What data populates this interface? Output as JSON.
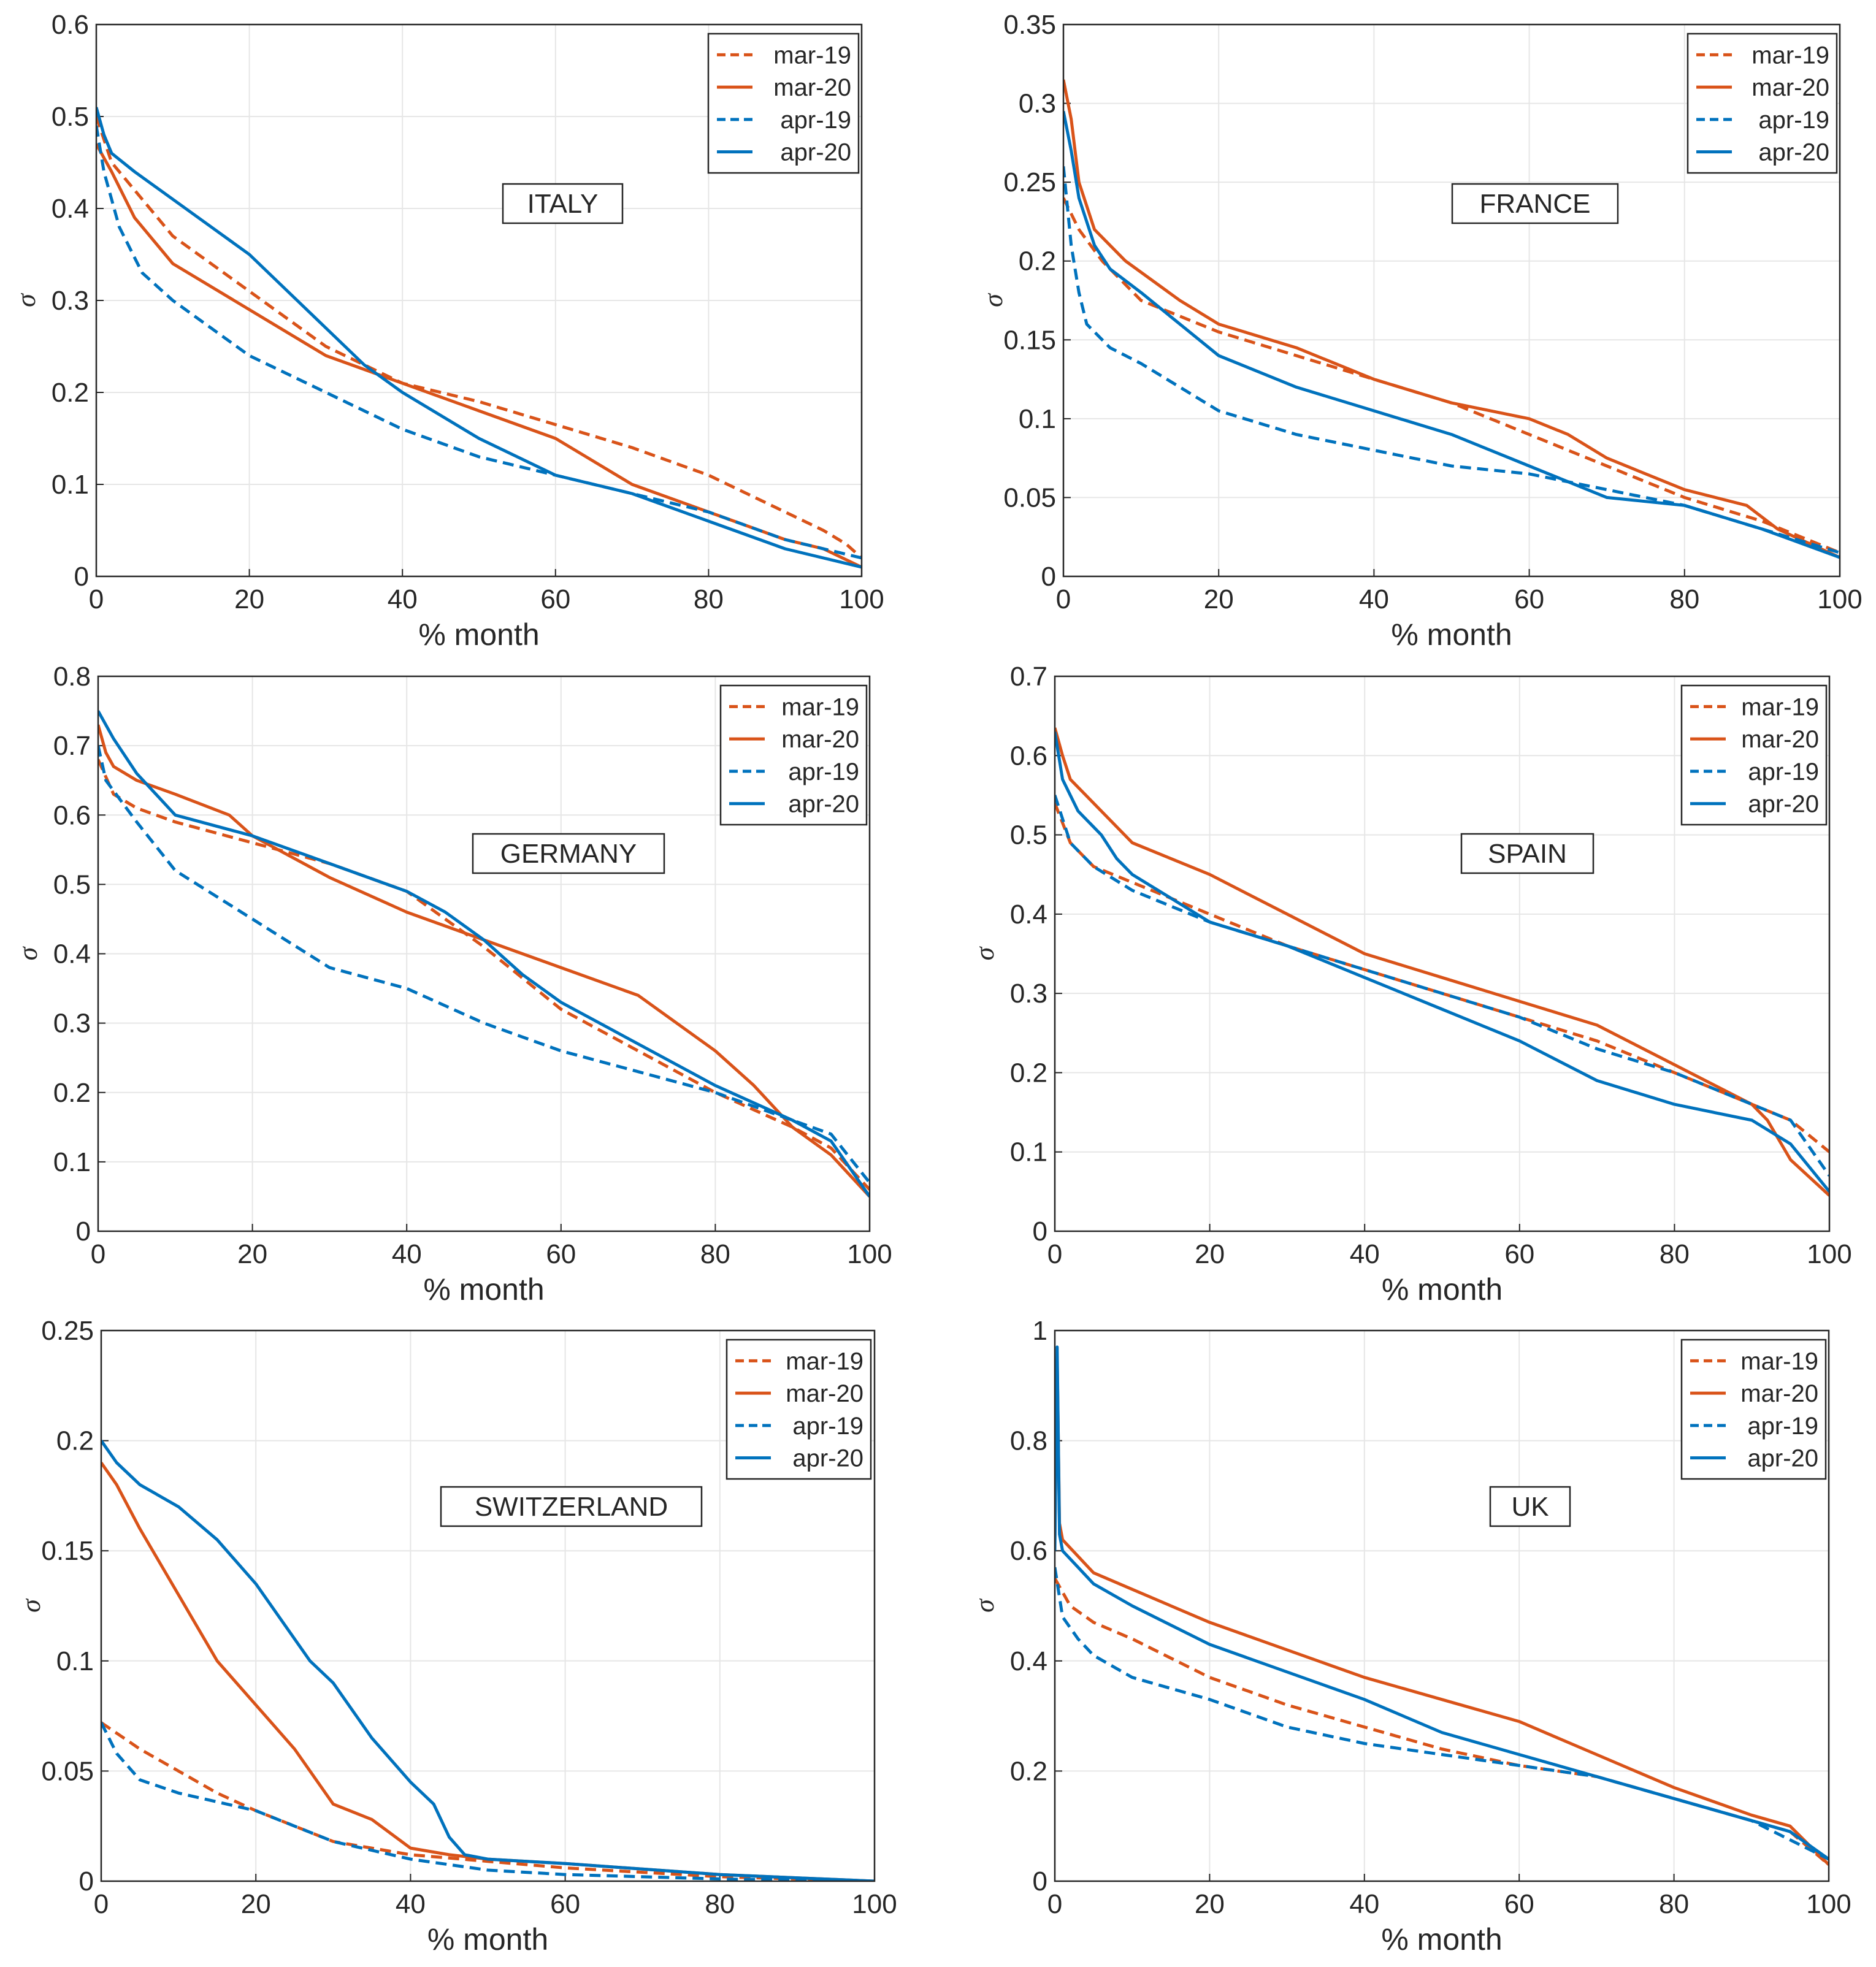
{
  "figure": {
    "xlabel": "% month",
    "ylabel": "σ"
  },
  "legend_labels": [
    "mar-19",
    "mar-20",
    "apr-19",
    "apr-20"
  ],
  "colors": {
    "mar": "#D95319",
    "apr": "#0072BD"
  },
  "chart_data": [
    {
      "type": "line",
      "title": "ITALY",
      "xlabel": "% month",
      "ylabel": "σ",
      "xlim": [
        0,
        100
      ],
      "ylim": [
        0,
        0.6
      ],
      "legend": "top-right",
      "xticks": [
        "0",
        "20",
        "40",
        "60",
        "80",
        "100"
      ],
      "yticks": [
        "0",
        "0.1",
        "0.2",
        "0.3",
        "0.4",
        "0.5",
        "0.6"
      ],
      "series": [
        {
          "name": "mar-19",
          "style": "dashed",
          "color": "#D95319",
          "x": [
            0,
            2,
            5,
            10,
            20,
            30,
            40,
            50,
            60,
            70,
            80,
            90,
            95,
            98,
            100
          ],
          "y": [
            0.5,
            0.45,
            0.42,
            0.37,
            0.31,
            0.25,
            0.21,
            0.19,
            0.165,
            0.14,
            0.11,
            0.07,
            0.05,
            0.035,
            0.02
          ]
        },
        {
          "name": "mar-20",
          "style": "solid",
          "color": "#D95319",
          "x": [
            0,
            2,
            5,
            10,
            20,
            30,
            40,
            50,
            60,
            70,
            80,
            90,
            95,
            100
          ],
          "y": [
            0.47,
            0.44,
            0.39,
            0.34,
            0.29,
            0.24,
            0.21,
            0.18,
            0.15,
            0.1,
            0.07,
            0.04,
            0.03,
            0.01
          ]
        },
        {
          "name": "apr-19",
          "style": "dashed",
          "color": "#0072BD",
          "x": [
            0,
            1,
            3,
            6,
            10,
            15,
            20,
            30,
            40,
            50,
            60,
            70,
            80,
            90,
            100
          ],
          "y": [
            0.49,
            0.44,
            0.38,
            0.33,
            0.3,
            0.27,
            0.24,
            0.2,
            0.16,
            0.13,
            0.11,
            0.09,
            0.07,
            0.04,
            0.02
          ]
        },
        {
          "name": "apr-20",
          "style": "solid",
          "color": "#0072BD",
          "x": [
            0,
            1,
            2,
            5,
            10,
            15,
            20,
            25,
            30,
            35,
            40,
            50,
            60,
            70,
            80,
            90,
            100
          ],
          "y": [
            0.51,
            0.48,
            0.46,
            0.44,
            0.41,
            0.38,
            0.35,
            0.31,
            0.27,
            0.23,
            0.2,
            0.15,
            0.11,
            0.09,
            0.06,
            0.03,
            0.01
          ]
        }
      ]
    },
    {
      "type": "line",
      "title": "FRANCE",
      "xlabel": "% month",
      "ylabel": "σ",
      "xlim": [
        0,
        100
      ],
      "ylim": [
        0,
        0.35
      ],
      "legend": "top-right",
      "xticks": [
        "0",
        "20",
        "40",
        "60",
        "80",
        "100"
      ],
      "yticks": [
        "0",
        "0.05",
        "0.1",
        "0.15",
        "0.2",
        "0.25",
        "0.3",
        "0.35"
      ],
      "series": [
        {
          "name": "mar-19",
          "style": "dashed",
          "color": "#D95319",
          "x": [
            0,
            2,
            5,
            10,
            20,
            30,
            40,
            50,
            60,
            70,
            80,
            90,
            100
          ],
          "y": [
            0.24,
            0.22,
            0.2,
            0.175,
            0.155,
            0.14,
            0.125,
            0.11,
            0.09,
            0.07,
            0.05,
            0.035,
            0.015
          ]
        },
        {
          "name": "mar-20",
          "style": "solid",
          "color": "#D95319",
          "x": [
            0,
            1,
            2,
            4,
            8,
            15,
            20,
            30,
            40,
            50,
            60,
            65,
            70,
            80,
            88,
            92,
            100
          ],
          "y": [
            0.315,
            0.29,
            0.25,
            0.22,
            0.2,
            0.175,
            0.16,
            0.145,
            0.125,
            0.11,
            0.1,
            0.09,
            0.075,
            0.055,
            0.045,
            0.03,
            0.012
          ]
        },
        {
          "name": "apr-19",
          "style": "dashed",
          "color": "#0072BD",
          "x": [
            0,
            1,
            2,
            3,
            6,
            10,
            15,
            20,
            30,
            40,
            50,
            60,
            70,
            80,
            90,
            100
          ],
          "y": [
            0.26,
            0.21,
            0.18,
            0.16,
            0.145,
            0.135,
            0.12,
            0.105,
            0.09,
            0.08,
            0.07,
            0.065,
            0.055,
            0.045,
            0.03,
            0.015
          ]
        },
        {
          "name": "apr-20",
          "style": "solid",
          "color": "#0072BD",
          "x": [
            0,
            1,
            2,
            4,
            6,
            10,
            15,
            20,
            30,
            40,
            50,
            55,
            60,
            65,
            70,
            80,
            90,
            100
          ],
          "y": [
            0.295,
            0.27,
            0.24,
            0.21,
            0.195,
            0.18,
            0.16,
            0.14,
            0.12,
            0.105,
            0.09,
            0.08,
            0.07,
            0.06,
            0.05,
            0.045,
            0.03,
            0.012
          ]
        }
      ]
    },
    {
      "type": "line",
      "title": "GERMANY",
      "xlabel": "% month",
      "ylabel": "σ",
      "xlim": [
        0,
        100
      ],
      "ylim": [
        0,
        0.8
      ],
      "legend": "top-right",
      "xticks": [
        "0",
        "20",
        "40",
        "60",
        "80",
        "100"
      ],
      "yticks": [
        "0",
        "0.1",
        "0.2",
        "0.3",
        "0.4",
        "0.5",
        "0.6",
        "0.7",
        "0.8"
      ],
      "series": [
        {
          "name": "mar-19",
          "style": "dashed",
          "color": "#D95319",
          "x": [
            0,
            2,
            5,
            10,
            20,
            30,
            40,
            50,
            60,
            70,
            80,
            90,
            95,
            100
          ],
          "y": [
            0.68,
            0.63,
            0.61,
            0.59,
            0.56,
            0.53,
            0.49,
            0.41,
            0.32,
            0.26,
            0.2,
            0.15,
            0.12,
            0.06
          ]
        },
        {
          "name": "mar-20",
          "style": "solid",
          "color": "#D95319",
          "x": [
            0,
            1,
            2,
            5,
            10,
            17,
            20,
            30,
            40,
            50,
            60,
            70,
            80,
            85,
            90,
            95,
            100
          ],
          "y": [
            0.73,
            0.69,
            0.67,
            0.65,
            0.63,
            0.6,
            0.57,
            0.51,
            0.46,
            0.42,
            0.38,
            0.34,
            0.26,
            0.21,
            0.15,
            0.11,
            0.05
          ]
        },
        {
          "name": "apr-19",
          "style": "dashed",
          "color": "#0072BD",
          "x": [
            0,
            1,
            3,
            5,
            10,
            20,
            30,
            40,
            50,
            60,
            70,
            80,
            90,
            95,
            100
          ],
          "y": [
            0.7,
            0.65,
            0.62,
            0.59,
            0.52,
            0.45,
            0.38,
            0.35,
            0.3,
            0.26,
            0.23,
            0.2,
            0.16,
            0.14,
            0.07
          ]
        },
        {
          "name": "apr-20",
          "style": "solid",
          "color": "#0072BD",
          "x": [
            0,
            2,
            5,
            10,
            20,
            30,
            40,
            45,
            50,
            55,
            60,
            65,
            70,
            80,
            90,
            95,
            100
          ],
          "y": [
            0.75,
            0.71,
            0.66,
            0.6,
            0.57,
            0.53,
            0.49,
            0.46,
            0.42,
            0.37,
            0.33,
            0.3,
            0.27,
            0.21,
            0.16,
            0.13,
            0.05
          ]
        }
      ]
    },
    {
      "type": "line",
      "title": "SPAIN",
      "xlabel": "% month",
      "ylabel": "σ",
      "xlim": [
        0,
        100
      ],
      "ylim": [
        0,
        0.7
      ],
      "legend": "top-right",
      "xticks": [
        "0",
        "20",
        "40",
        "60",
        "80",
        "100"
      ],
      "yticks": [
        "0",
        "0.1",
        "0.2",
        "0.3",
        "0.4",
        "0.5",
        "0.6",
        "0.7"
      ],
      "series": [
        {
          "name": "mar-19",
          "style": "dashed",
          "color": "#D95319",
          "x": [
            0,
            2,
            5,
            10,
            20,
            30,
            40,
            50,
            60,
            70,
            80,
            90,
            95,
            100
          ],
          "y": [
            0.54,
            0.49,
            0.46,
            0.44,
            0.4,
            0.36,
            0.33,
            0.3,
            0.27,
            0.24,
            0.2,
            0.16,
            0.14,
            0.1
          ]
        },
        {
          "name": "mar-20",
          "style": "solid",
          "color": "#D95319",
          "x": [
            0,
            1,
            2,
            5,
            10,
            20,
            30,
            40,
            50,
            60,
            70,
            80,
            90,
            92,
            95,
            100
          ],
          "y": [
            0.635,
            0.6,
            0.57,
            0.54,
            0.49,
            0.45,
            0.4,
            0.35,
            0.32,
            0.29,
            0.26,
            0.21,
            0.16,
            0.14,
            0.09,
            0.045
          ]
        },
        {
          "name": "apr-19",
          "style": "dashed",
          "color": "#0072BD",
          "x": [
            0,
            2,
            5,
            10,
            20,
            30,
            40,
            50,
            60,
            70,
            80,
            90,
            95,
            100
          ],
          "y": [
            0.55,
            0.49,
            0.46,
            0.43,
            0.39,
            0.36,
            0.33,
            0.3,
            0.27,
            0.23,
            0.2,
            0.16,
            0.14,
            0.07
          ]
        },
        {
          "name": "apr-20",
          "style": "solid",
          "color": "#0072BD",
          "x": [
            0,
            1,
            3,
            6,
            8,
            10,
            15,
            20,
            30,
            40,
            50,
            60,
            70,
            80,
            90,
            95,
            100
          ],
          "y": [
            0.63,
            0.57,
            0.53,
            0.5,
            0.47,
            0.45,
            0.42,
            0.39,
            0.36,
            0.32,
            0.28,
            0.24,
            0.19,
            0.16,
            0.14,
            0.11,
            0.05
          ]
        }
      ]
    },
    {
      "type": "line",
      "title": "SWITZERLAND",
      "xlabel": "% month",
      "ylabel": "σ",
      "xlim": [
        0,
        100
      ],
      "ylim": [
        0,
        0.25
      ],
      "legend": "top-right",
      "xticks": [
        "0",
        "20",
        "40",
        "60",
        "80",
        "100"
      ],
      "yticks": [
        "0",
        "0.05",
        "0.1",
        "0.15",
        "0.2",
        "0.25"
      ],
      "series": [
        {
          "name": "mar-19",
          "style": "dashed",
          "color": "#D95319",
          "x": [
            0,
            5,
            10,
            15,
            20,
            25,
            30,
            35,
            40,
            50,
            60,
            80,
            100
          ],
          "y": [
            0.072,
            0.06,
            0.05,
            0.04,
            0.032,
            0.025,
            0.018,
            0.015,
            0.012,
            0.009,
            0.006,
            0.002,
            0
          ]
        },
        {
          "name": "mar-20",
          "style": "solid",
          "color": "#D95319",
          "x": [
            0,
            2,
            5,
            10,
            15,
            20,
            25,
            30,
            35,
            40,
            45,
            50,
            60,
            80,
            100
          ],
          "y": [
            0.19,
            0.18,
            0.16,
            0.13,
            0.1,
            0.08,
            0.06,
            0.035,
            0.028,
            0.015,
            0.012,
            0.01,
            0.008,
            0.003,
            0
          ]
        },
        {
          "name": "apr-19",
          "style": "dashed",
          "color": "#0072BD",
          "x": [
            0,
            2,
            5,
            10,
            20,
            30,
            40,
            50,
            60,
            80,
            100
          ],
          "y": [
            0.072,
            0.058,
            0.046,
            0.04,
            0.032,
            0.018,
            0.01,
            0.005,
            0.003,
            0.001,
            0
          ]
        },
        {
          "name": "apr-20",
          "style": "solid",
          "color": "#0072BD",
          "x": [
            0,
            2,
            5,
            10,
            15,
            20,
            25,
            27,
            30,
            35,
            40,
            43,
            45,
            47,
            50,
            60,
            80,
            100
          ],
          "y": [
            0.2,
            0.19,
            0.18,
            0.17,
            0.155,
            0.135,
            0.11,
            0.1,
            0.09,
            0.065,
            0.045,
            0.035,
            0.02,
            0.012,
            0.01,
            0.008,
            0.003,
            0
          ]
        }
      ]
    },
    {
      "type": "line",
      "title": "UK",
      "xlabel": "% month",
      "ylabel": "σ",
      "xlim": [
        0,
        100
      ],
      "ylim": [
        0,
        1
      ],
      "legend": "top-right",
      "xticks": [
        "0",
        "20",
        "40",
        "60",
        "80",
        "100"
      ],
      "yticks": [
        "0",
        "0.2",
        "0.4",
        "0.6",
        "0.8",
        "1"
      ],
      "series": [
        {
          "name": "mar-19",
          "style": "dashed",
          "color": "#D95319",
          "x": [
            0,
            2,
            5,
            10,
            20,
            30,
            40,
            50,
            60,
            70,
            80,
            90,
            95,
            100
          ],
          "y": [
            0.55,
            0.5,
            0.47,
            0.44,
            0.37,
            0.32,
            0.28,
            0.24,
            0.21,
            0.19,
            0.15,
            0.11,
            0.09,
            0.03
          ]
        },
        {
          "name": "mar-20",
          "style": "solid",
          "color": "#D95319",
          "x": [
            0,
            0.3,
            0.6,
            1,
            3,
            5,
            10,
            20,
            30,
            40,
            50,
            60,
            70,
            80,
            90,
            95,
            100
          ],
          "y": [
            0.62,
            0.95,
            0.65,
            0.62,
            0.59,
            0.56,
            0.53,
            0.47,
            0.42,
            0.37,
            0.33,
            0.29,
            0.23,
            0.17,
            0.12,
            0.1,
            0.03
          ]
        },
        {
          "name": "apr-19",
          "style": "dashed",
          "color": "#0072BD",
          "x": [
            0,
            1,
            3,
            5,
            10,
            20,
            30,
            40,
            50,
            60,
            70,
            80,
            90,
            100
          ],
          "y": [
            0.57,
            0.48,
            0.44,
            0.41,
            0.37,
            0.33,
            0.28,
            0.25,
            0.23,
            0.21,
            0.19,
            0.15,
            0.11,
            0.04
          ]
        },
        {
          "name": "apr-20",
          "style": "solid",
          "color": "#0072BD",
          "x": [
            0,
            0.3,
            0.6,
            1,
            3,
            5,
            10,
            20,
            30,
            40,
            50,
            60,
            70,
            80,
            90,
            95,
            100
          ],
          "y": [
            0.6,
            0.97,
            0.63,
            0.6,
            0.57,
            0.54,
            0.5,
            0.43,
            0.38,
            0.33,
            0.27,
            0.23,
            0.19,
            0.15,
            0.11,
            0.09,
            0.04
          ]
        }
      ]
    }
  ]
}
